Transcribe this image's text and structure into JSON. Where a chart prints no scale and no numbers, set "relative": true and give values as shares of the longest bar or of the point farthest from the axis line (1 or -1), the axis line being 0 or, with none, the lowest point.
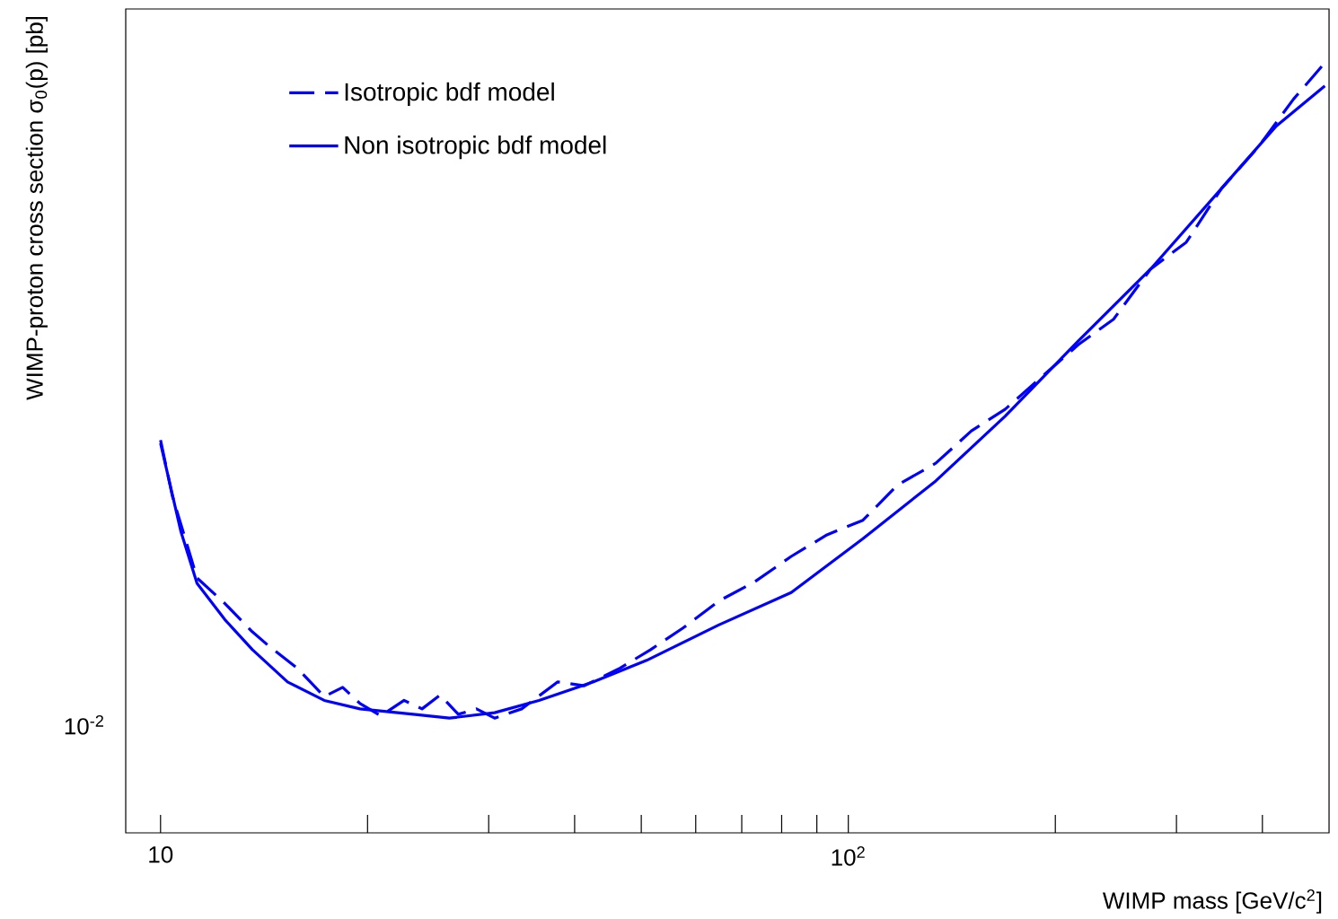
{
  "chart_data": {
    "type": "line",
    "relative": true,
    "xlabel": "WIMP mass [GeV/c$^{2}$]",
    "ylabel": "WIMP-proton cross section σ$_{0}$(p) [pb]",
    "log": "x",
    "xlim": [
      8.9,
      500
    ],
    "xticks": [
      {
        "value": 10,
        "label": "10"
      },
      {
        "value": 20,
        "label": null
      },
      {
        "value": 30,
        "label": null
      },
      {
        "value": 40,
        "label": null
      },
      {
        "value": 50,
        "label": null
      },
      {
        "value": 60,
        "label": null
      },
      {
        "value": 70,
        "label": null
      },
      {
        "value": 80,
        "label": null
      },
      {
        "value": 90,
        "label": null
      },
      {
        "value": 100,
        "label": "10$^{2}$"
      },
      {
        "value": 200,
        "label": null
      },
      {
        "value": 300,
        "label": null
      },
      {
        "value": 400,
        "label": null
      }
    ],
    "annotations": [
      "10$^{-2}$"
    ],
    "legend": "top left",
    "marker": "none",
    "series": [
      {
        "name": "Isotropic bdf model",
        "color": "#0000ff",
        "line_style": "dashed",
        "x": [
          10,
          10.4,
          11.3,
          12.4,
          13.6,
          14.4,
          15.8,
          17.3,
          18.4,
          19.5,
          20.9,
          22.6,
          24.0,
          25.5,
          27.1,
          28.8,
          30.6,
          33.5,
          37.8,
          41.3,
          46.6,
          51.6,
          57.5,
          64.8,
          73.1,
          82.6,
          93.1,
          105,
          118,
          134,
          151,
          169,
          191,
          216,
          243,
          275,
          310,
          349,
          394,
          444,
          493
        ],
        "values": [
          0.51,
          0.438,
          0.331,
          0.298,
          0.261,
          0.242,
          0.214,
          0.177,
          0.189,
          0.168,
          0.152,
          0.172,
          0.161,
          0.179,
          0.154,
          0.161,
          0.149,
          0.161,
          0.196,
          0.191,
          0.214,
          0.238,
          0.266,
          0.301,
          0.326,
          0.359,
          0.387,
          0.406,
          0.452,
          0.48,
          0.522,
          0.55,
          0.592,
          0.634,
          0.667,
          0.732,
          0.767,
          0.837,
          0.89,
          0.953,
          1
        ]
      },
      {
        "name": "Non isotropic bdf model",
        "color": "#0000ff",
        "line_style": "solid",
        "x": [
          10,
          10.7,
          11.3,
          12.4,
          13.6,
          15.3,
          17.3,
          19.5,
          23.3,
          26.3,
          30.6,
          35.5,
          42.6,
          50.9,
          64.8,
          82.6,
          105,
          134,
          169,
          216,
          275,
          349,
          419,
          493
        ],
        "values": [
          0.506,
          0.392,
          0.324,
          0.277,
          0.238,
          0.196,
          0.172,
          0.161,
          0.154,
          0.149,
          0.156,
          0.172,
          0.196,
          0.224,
          0.27,
          0.312,
          0.382,
          0.457,
          0.541,
          0.639,
          0.732,
          0.837,
          0.918,
          0.97
        ]
      }
    ]
  }
}
